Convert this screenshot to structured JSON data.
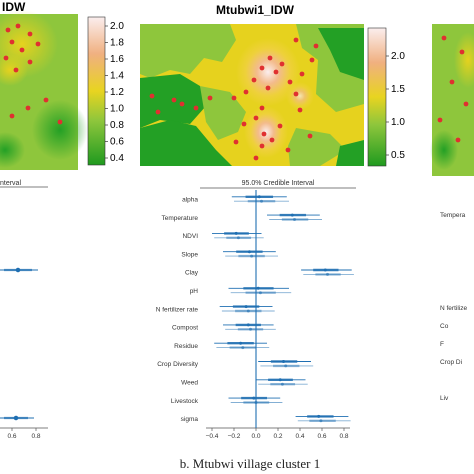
{
  "left_panel": {
    "map_title_fragment": "IDW",
    "colorbar_ticks": [
      "2.0",
      "1.8",
      "1.6",
      "1.4",
      "1.2",
      "1.0",
      "0.8",
      "0.6",
      "0.4"
    ],
    "interval_header_fragment": "nterval",
    "xticks": [
      "0.6",
      "0.8"
    ]
  },
  "center_panel": {
    "map_title": "Mtubwi1_IDW",
    "colorbar_ticks": [
      "2.0",
      "1.5",
      "1.0",
      "0.5"
    ],
    "interval_header": "95.0% Credible Interval",
    "caption": "b. Mtubwi village cluster 1"
  },
  "right_panel": {
    "variable_fragments": [
      "Tempera",
      "N fertilize",
      "Co",
      "F",
      "Crop Di",
      "Liv"
    ]
  },
  "chart_data": [
    {
      "type": "forest",
      "title": "95.0% Credible Interval",
      "categories": [
        "alpha",
        "Temperature",
        "NDVI",
        "Slope",
        "Clay",
        "pH",
        "N fertilizer rate",
        "Compost",
        "Residue",
        "Crop Diversity",
        "Weed",
        "Livestock",
        "sigma"
      ],
      "series": [
        {
          "mean": [
            0.03,
            0.33,
            -0.18,
            -0.06,
            0.63,
            0.02,
            -0.09,
            -0.07,
            -0.14,
            0.25,
            0.22,
            -0.02,
            0.57
          ],
          "lower": [
            -0.22,
            0.1,
            -0.4,
            -0.3,
            0.41,
            -0.25,
            -0.33,
            -0.3,
            -0.38,
            0.02,
            0.0,
            -0.25,
            0.36
          ],
          "upper": [
            0.28,
            0.58,
            0.05,
            0.18,
            0.87,
            0.3,
            0.15,
            0.16,
            0.1,
            0.5,
            0.45,
            0.22,
            0.84
          ]
        }
      ],
      "xticks": [
        "−0.4",
        "−0.2",
        "0.0",
        "0.2",
        "0.4",
        "0.6",
        "0.8"
      ],
      "xlim": [
        -0.4,
        0.8
      ],
      "reference_line": 0.0,
      "colors": {
        "interval": "#1f6fb2",
        "reference": "#1f6fb2"
      }
    }
  ]
}
